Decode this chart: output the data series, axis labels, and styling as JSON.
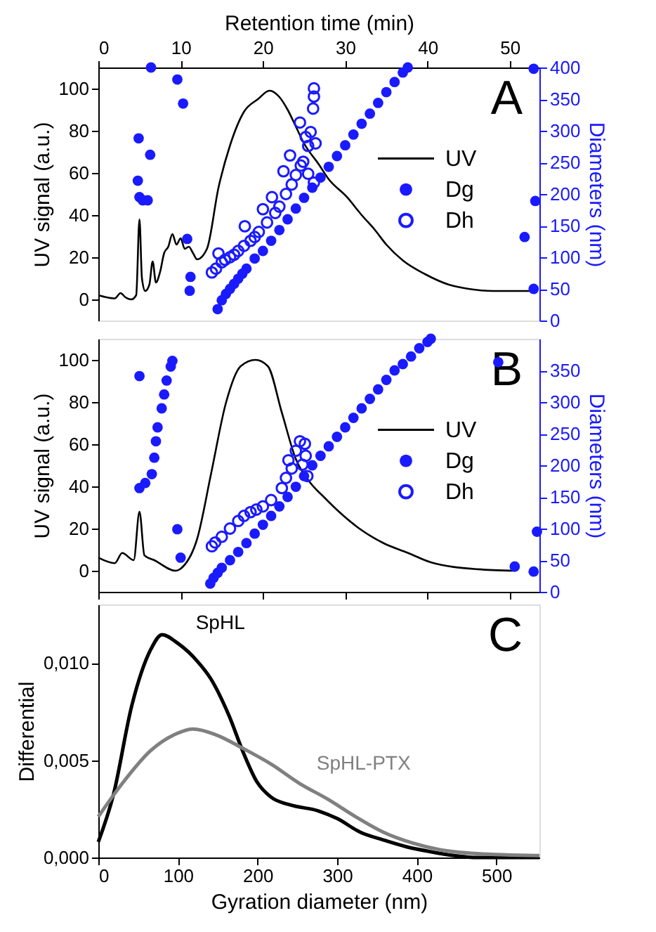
{
  "chart_data": [
    {
      "type": "line",
      "xlabel": "Retention time (min)",
      "ylabel": "UV signal (a.u.)",
      "y2label": "Diameters (nm)",
      "xlim": [
        0,
        53.6
      ],
      "xticks": [
        0,
        10,
        20,
        30,
        40,
        50
      ],
      "ylim": [
        -10,
        110
      ],
      "yticks": [
        0,
        20,
        40,
        60,
        80,
        100
      ],
      "y2lim": [
        0,
        400
      ],
      "y2ticks": [
        0,
        50,
        100,
        150,
        200,
        250,
        300,
        350,
        400
      ],
      "legend": "right",
      "annotations": [
        "A"
      ],
      "series": [
        {
          "name": "UV",
          "type": "line",
          "color": "#000000",
          "x": [
            0,
            1,
            2,
            2.7,
            3.3,
            4,
            4.6,
            5,
            5.3,
            5.7,
            6.2,
            6.6,
            7,
            7.5,
            8,
            8.5,
            9,
            9.5,
            10,
            10.5,
            11,
            11.5,
            12,
            13.2,
            14.6,
            16,
            17.7,
            19.4,
            20.8,
            22,
            23,
            24,
            25,
            26.8,
            28,
            30.2,
            32,
            33.6,
            35,
            37,
            39.7,
            42.6,
            45,
            48,
            50,
            53
          ],
          "values": [
            2,
            1,
            0.5,
            3,
            1,
            0,
            2,
            38,
            10,
            4,
            7,
            18,
            8,
            13,
            22,
            25,
            31,
            26,
            29,
            24,
            25,
            22,
            19,
            24,
            53,
            73,
            89,
            95,
            99,
            96,
            90,
            82,
            74,
            64,
            57,
            48.6,
            40,
            33,
            26,
            18.5,
            12,
            7,
            5,
            4,
            4,
            4
          ]
        },
        {
          "name": "Dg",
          "type": "scatter",
          "marker": "circle",
          "axis": "y2",
          "color": "#1a1aff",
          "x": [
            4.9,
            4.8,
            5.0,
            5.4,
            6.0,
            6.3,
            6.4,
            9.6,
            10.3,
            10.8,
            11.2,
            11.1,
            51.8,
            52.9,
            53.1,
            52.9,
            14.5,
            15,
            15.5,
            16,
            16.5,
            17,
            17.5,
            18,
            19,
            20,
            21,
            22,
            23,
            24,
            25,
            26,
            27,
            28,
            29,
            30,
            31,
            32,
            33,
            34,
            35,
            36,
            37,
            37.6
          ],
          "values": [
            288,
            221,
            195,
            190,
            190,
            262,
            400,
            381,
            343,
            129,
            69,
            47,
            132,
            398,
            189,
            50,
            18,
            32,
            42,
            50,
            58,
            66,
            74,
            82,
            98,
            110,
            126,
            143,
            160,
            177,
            194,
            210,
            226,
            243,
            260,
            277,
            294,
            311,
            327,
            344,
            361,
            377,
            392,
            400
          ]
        },
        {
          "name": "Dh",
          "type": "scatter",
          "marker": "circle",
          "axis": "y2",
          "color": "#1a1aff",
          "x": [
            13.8,
            14.3,
            14.6,
            15.0,
            15.4,
            16,
            16.5,
            17,
            17.7,
            17.8,
            18.5,
            19,
            19.5,
            20,
            20.5,
            21.1,
            21.5,
            22,
            22.5,
            22.8,
            23.3,
            23.5,
            24,
            24.5,
            24.6,
            24.9,
            25.2,
            25.5,
            25.5,
            25.8,
            26.1,
            26.2,
            26.2,
            26.2,
            26.4
          ],
          "values": [
            76,
            82,
            106,
            92,
            96,
            100,
            104,
            110,
            118,
            149,
            126,
            132,
            140,
            176,
            155,
            195,
            170,
            180,
            236,
            200,
            261,
            215,
            230,
            313,
            245,
            251,
            290,
            276,
            232,
            298,
            335,
            218,
            354,
            367,
            280
          ]
        }
      ]
    },
    {
      "type": "line",
      "ylabel": "UV signal (a.u.)",
      "y2label": "Diameters (nm)",
      "xlim": [
        0,
        53.6
      ],
      "xticks": [
        0,
        10,
        20,
        30,
        40,
        50
      ],
      "ylim": [
        -10,
        110
      ],
      "yticks": [
        0,
        20,
        40,
        60,
        80,
        100
      ],
      "y2lim": [
        0,
        400
      ],
      "y2ticks": [
        0,
        50,
        100,
        150,
        200,
        250,
        300,
        350
      ],
      "tick_labels": "y",
      "legend": "right",
      "annotations": [
        "B"
      ],
      "series": [
        {
          "name": "UV",
          "type": "line",
          "color": "#000000",
          "x": [
            0,
            2.0,
            2.9,
            4.3,
            5.0,
            5.6,
            6.8,
            9.4,
            10.3,
            12.0,
            13.7,
            15.5,
            17.3,
            19.1,
            20.6,
            22.3,
            24.0,
            25.7,
            27.4,
            29.1,
            31.9,
            34.7,
            37.6,
            40.4,
            46.1,
            50.7
          ],
          "values": [
            6.2,
            3.6,
            8.4,
            5,
            28,
            7.3,
            5,
            0,
            2,
            15,
            46,
            79.5,
            97,
            100,
            97,
            75,
            53,
            42,
            35,
            28.5,
            19.5,
            13,
            8.5,
            4,
            0.7,
            0
          ]
        },
        {
          "name": "Dg",
          "type": "scatter",
          "marker": "circle",
          "axis": "y2",
          "color": "#1a1aff",
          "x": [
            5.0,
            5.0,
            5.7,
            6.5,
            6.8,
            7.0,
            7.2,
            7.7,
            8.0,
            8.3,
            8.8,
            9.0,
            9.6,
            10.0,
            48.6,
            50.6,
            52.9,
            53.3,
            13.6,
            14,
            14.5,
            15,
            16,
            17,
            18,
            19,
            20,
            21,
            22,
            23,
            24,
            25,
            26,
            27,
            28,
            29,
            30,
            31,
            32,
            33,
            34,
            35,
            36,
            37,
            38,
            39,
            40,
            40.4
          ],
          "values": [
            341,
            164,
            172,
            186,
            212,
            238,
            260,
            290,
            312,
            334,
            356,
            365,
            99,
            54,
            363,
            40,
            32,
            95,
            13,
            22,
            30,
            38,
            50,
            63,
            77,
            92,
            106,
            120,
            135,
            150,
            166,
            183,
            200,
            215,
            230,
            245,
            260,
            275,
            290,
            305,
            320,
            335,
            350,
            360,
            372,
            385,
            395,
            400
          ]
        },
        {
          "name": "Dh",
          "type": "scatter",
          "marker": "circle",
          "axis": "y2",
          "color": "#1a1aff",
          "x": [
            13.8,
            14.2,
            15,
            16,
            17,
            17.7,
            18.5,
            19.2,
            20,
            21,
            22.3,
            22.8,
            23.1,
            23.5,
            24,
            24.5,
            24.8,
            25.1,
            25.4,
            25.2
          ],
          "values": [
            72,
            78,
            87,
            100,
            112,
            120,
            126,
            130,
            135,
            145,
            164,
            180,
            208,
            195,
            223,
            238,
            201,
            234,
            183,
            215
          ]
        }
      ]
    },
    {
      "type": "line",
      "xlabel": "Gyration diameter (nm)",
      "ylabel": "Differential",
      "xlim": [
        0,
        554
      ],
      "xticks": [
        0,
        100,
        200,
        300,
        400,
        500
      ],
      "ylim": [
        0,
        0.013
      ],
      "yticks": [
        {
          "value": 0,
          "label": "0,000"
        },
        {
          "value": 0.005,
          "label": "0,005"
        },
        {
          "value": 0.01,
          "label": "0,010"
        }
      ],
      "annotations": [
        "C"
      ],
      "series": [
        {
          "name": "SpHL",
          "color": "#000000",
          "x": [
            0,
            18.8,
            42,
            66,
            80,
            100,
            124,
            141,
            164,
            182,
            199,
            217,
            241,
            276,
            300,
            329,
            358,
            387,
            417,
            447,
            476,
            554
          ],
          "values": [
            0.0008,
            0.0032,
            0.0078,
            0.0107,
            0.01145,
            0.011,
            0.0101,
            0.0092,
            0.0073,
            0.0054,
            0.0039,
            0.0031,
            0.0027,
            0.0024,
            0.002,
            0.0013,
            0.0009,
            0.00055,
            0.0003,
            0.0001,
            0,
            0
          ]
        },
        {
          "name": "SpHL-PTX",
          "color": "#808080",
          "x": [
            0,
            30,
            66,
            95,
            119,
            148,
            182,
            217,
            253,
            288,
            323,
            358,
            394,
            429,
            476,
            554
          ],
          "values": [
            0.0021,
            0.0038,
            0.0055,
            0.0063,
            0.0066,
            0.0063,
            0.0056,
            0.0048,
            0.0038,
            0.003,
            0.0021,
            0.0013,
            0.00075,
            0.0004,
            0.0002,
            0.0001
          ]
        }
      ]
    }
  ]
}
